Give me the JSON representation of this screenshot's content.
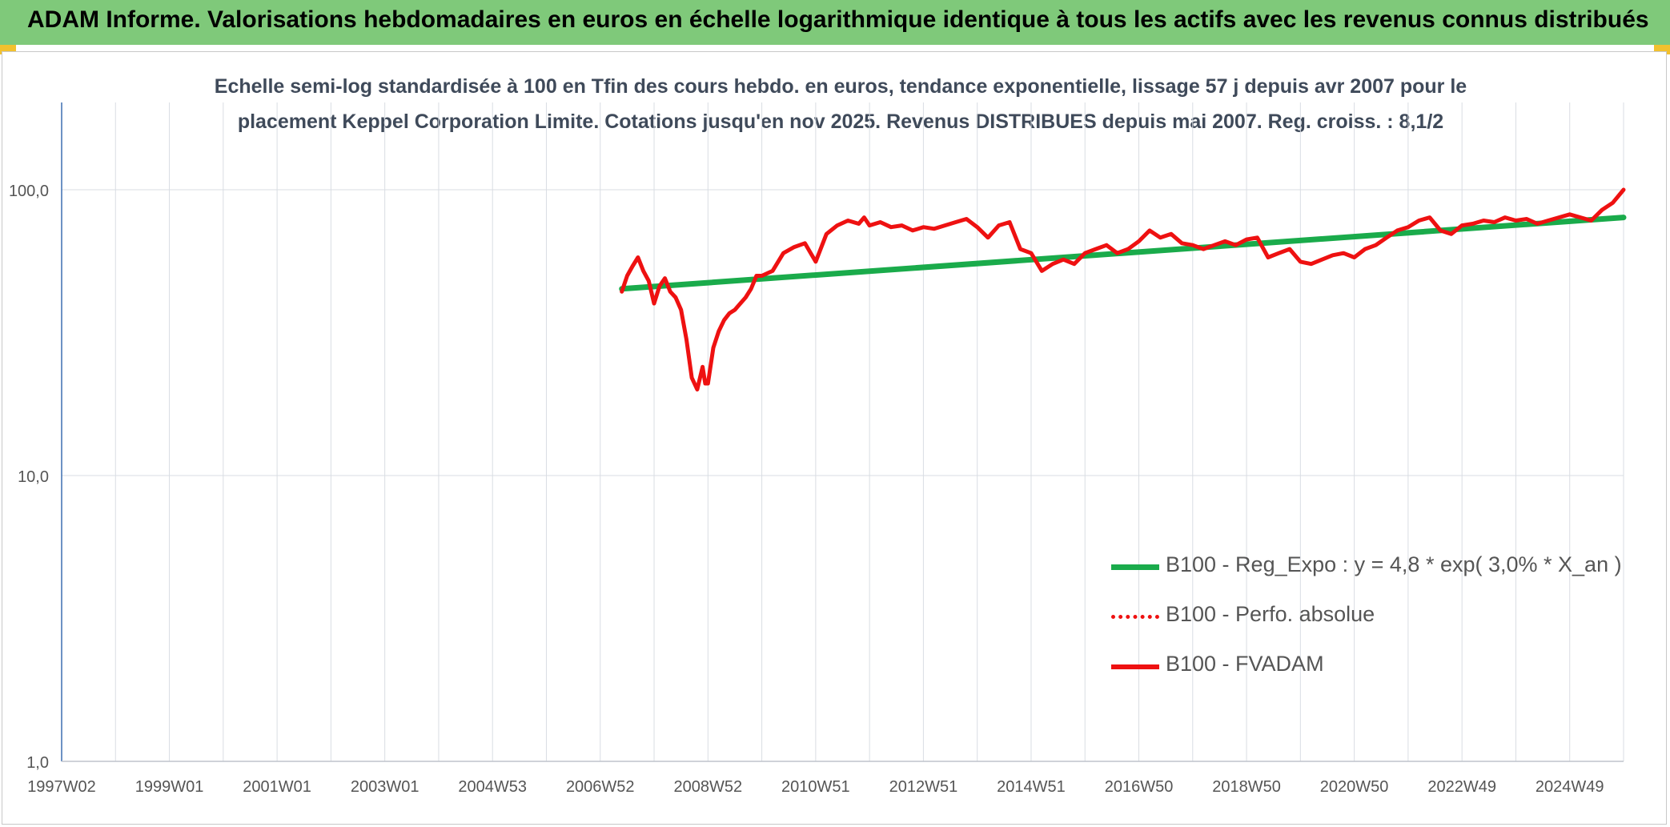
{
  "header": {
    "title": "ADAM Informe. Valorisations hebdomadaires en euros en échelle logarithmique identique à tous les actifs avec les revenus connus distribués"
  },
  "colors": {
    "banner": "#7fc97a",
    "accent_corner": "#f2c12e",
    "regression": "#1aab4b",
    "fvadam": "#ee1111",
    "perfo": "#ee1111",
    "grid": "#d9dde3",
    "axis": "#3d6fb0"
  },
  "chart_data": {
    "type": "line",
    "title_line1": "Echelle semi-log standardisée à 100 en Tfin des cours hebdo. en euros, tendance exponentielle, lissage 57 j depuis avr 2007 pour le",
    "title_line2": "placement Keppel Corporation Limite. Cotations jusqu'en nov 2025. Revenus DISTRIBUES depuis mai 2007. Reg. croiss. : 8,1/2",
    "y_scale": "log",
    "ylim": [
      1,
      100
    ],
    "y_ticks": [
      {
        "value": 1,
        "label": "1,0"
      },
      {
        "value": 10,
        "label": "10,0"
      },
      {
        "value": 100,
        "label": "100,0"
      }
    ],
    "xlim": [
      1997.0,
      2026.0
    ],
    "x_ticks": [
      {
        "value": 1997.0,
        "label": "1997W02"
      },
      {
        "value": 1999.0,
        "label": "1999W01"
      },
      {
        "value": 2001.0,
        "label": "2001W01"
      },
      {
        "value": 2003.0,
        "label": "2003W01"
      },
      {
        "value": 2005.0,
        "label": "2004W53"
      },
      {
        "value": 2007.0,
        "label": "2006W52"
      },
      {
        "value": 2009.0,
        "label": "2008W52"
      },
      {
        "value": 2011.0,
        "label": "2010W51"
      },
      {
        "value": 2013.0,
        "label": "2012W51"
      },
      {
        "value": 2015.0,
        "label": "2014W51"
      },
      {
        "value": 2017.0,
        "label": "2016W50"
      },
      {
        "value": 2019.0,
        "label": "2018W50"
      },
      {
        "value": 2021.0,
        "label": "2020W50"
      },
      {
        "value": 2023.0,
        "label": "2022W49"
      },
      {
        "value": 2025.0,
        "label": "2024W49"
      }
    ],
    "legend_position": "right",
    "grid": true,
    "series": [
      {
        "name": "B100 - Reg_Expo : y = 4,8 * exp( 3,0% *  X_an )",
        "style": "solid-thick",
        "color": "#1aab4b",
        "x": [
          2007.4,
          2026.0
        ],
        "y": [
          45,
          80
        ]
      },
      {
        "name": "B100 - Perfo. absolue",
        "style": "dotted",
        "color": "#ee1111",
        "x": [],
        "y": []
      },
      {
        "name": "B100 - FVADAM",
        "style": "solid",
        "color": "#ee1111",
        "x": [
          2007.4,
          2007.5,
          2007.6,
          2007.7,
          2007.8,
          2007.9,
          2008.0,
          2008.1,
          2008.2,
          2008.3,
          2008.4,
          2008.5,
          2008.6,
          2008.7,
          2008.8,
          2008.9,
          2008.95,
          2009.0,
          2009.1,
          2009.2,
          2009.3,
          2009.4,
          2009.5,
          2009.6,
          2009.7,
          2009.8,
          2009.9,
          2010.0,
          2010.2,
          2010.4,
          2010.6,
          2010.8,
          2011.0,
          2011.2,
          2011.4,
          2011.6,
          2011.8,
          2011.9,
          2012.0,
          2012.2,
          2012.4,
          2012.6,
          2012.8,
          2013.0,
          2013.2,
          2013.4,
          2013.6,
          2013.8,
          2014.0,
          2014.2,
          2014.4,
          2014.6,
          2014.8,
          2015.0,
          2015.2,
          2015.4,
          2015.6,
          2015.8,
          2016.0,
          2016.2,
          2016.4,
          2016.6,
          2016.8,
          2017.0,
          2017.2,
          2017.4,
          2017.6,
          2017.8,
          2018.0,
          2018.2,
          2018.4,
          2018.6,
          2018.8,
          2019.0,
          2019.2,
          2019.4,
          2019.6,
          2019.8,
          2020.0,
          2020.2,
          2020.4,
          2020.6,
          2020.8,
          2021.0,
          2021.2,
          2021.4,
          2021.6,
          2021.8,
          2022.0,
          2022.2,
          2022.4,
          2022.6,
          2022.8,
          2023.0,
          2023.2,
          2023.4,
          2023.6,
          2023.8,
          2024.0,
          2024.2,
          2024.4,
          2024.6,
          2024.8,
          2025.0,
          2025.2,
          2025.4,
          2025.6,
          2025.8,
          2026.0
        ],
        "y": [
          44,
          50,
          54,
          58,
          52,
          48,
          40,
          46,
          49,
          44,
          42,
          38,
          30,
          22,
          20,
          24,
          21,
          21,
          28,
          32,
          35,
          37,
          38,
          40,
          42,
          45,
          50,
          50,
          52,
          60,
          63,
          65,
          56,
          70,
          75,
          78,
          76,
          80,
          75,
          77,
          74,
          75,
          72,
          74,
          73,
          75,
          77,
          79,
          74,
          68,
          75,
          77,
          62,
          60,
          52,
          55,
          57,
          55,
          60,
          62,
          64,
          60,
          62,
          66,
          72,
          68,
          70,
          65,
          64,
          62,
          64,
          66,
          64,
          67,
          68,
          58,
          60,
          62,
          56,
          55,
          57,
          59,
          60,
          58,
          62,
          64,
          68,
          72,
          74,
          78,
          80,
          72,
          70,
          75,
          76,
          78,
          77,
          80,
          78,
          79,
          76,
          78,
          80,
          82,
          80,
          78,
          85,
          90,
          100
        ]
      }
    ]
  }
}
